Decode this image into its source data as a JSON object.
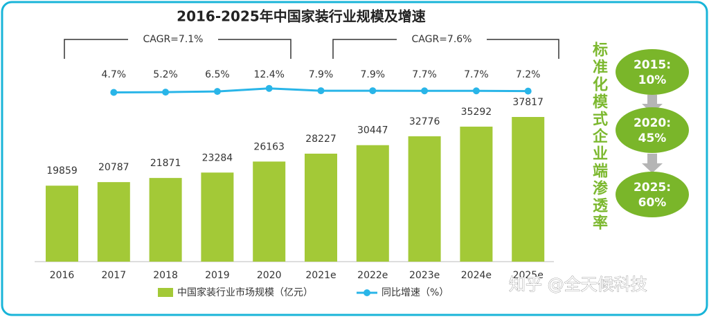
{
  "chart_data": {
    "type": "bar",
    "title": "2016-2025年中国家装行业规模及增速",
    "categories": [
      "2016",
      "2017",
      "2018",
      "2019",
      "2020",
      "2021e",
      "2022e",
      "2023e",
      "2024e",
      "2025e"
    ],
    "series": [
      {
        "name": "中国家装行业市场规模（亿元）",
        "color": "#a3c937",
        "values": [
          19859,
          20787,
          21871,
          23284,
          26163,
          28227,
          30447,
          32776,
          35292,
          37817
        ]
      },
      {
        "name": "同比增速（%）",
        "color": "#29b5e8",
        "axis": "y2",
        "values": [
          null,
          4.7,
          5.2,
          6.5,
          12.4,
          7.9,
          7.9,
          7.7,
          7.7,
          7.2
        ],
        "value_labels": [
          null,
          "4.7%",
          "5.2%",
          "6.5%",
          "12.4%",
          "7.9%",
          "7.9%",
          "7.7%",
          "7.7%",
          "7.2%"
        ]
      }
    ],
    "annotations": [
      "CAGR=7.1%",
      "CAGR=7.6%"
    ]
  },
  "side_panel": {
    "title": "标准化模式企业端渗透率",
    "items": [
      {
        "year": "2015:",
        "value": "10%"
      },
      {
        "year": "2020:",
        "value": "45%"
      },
      {
        "year": "2025:",
        "value": "60%"
      }
    ]
  },
  "watermark": "知乎 @全天候科技"
}
